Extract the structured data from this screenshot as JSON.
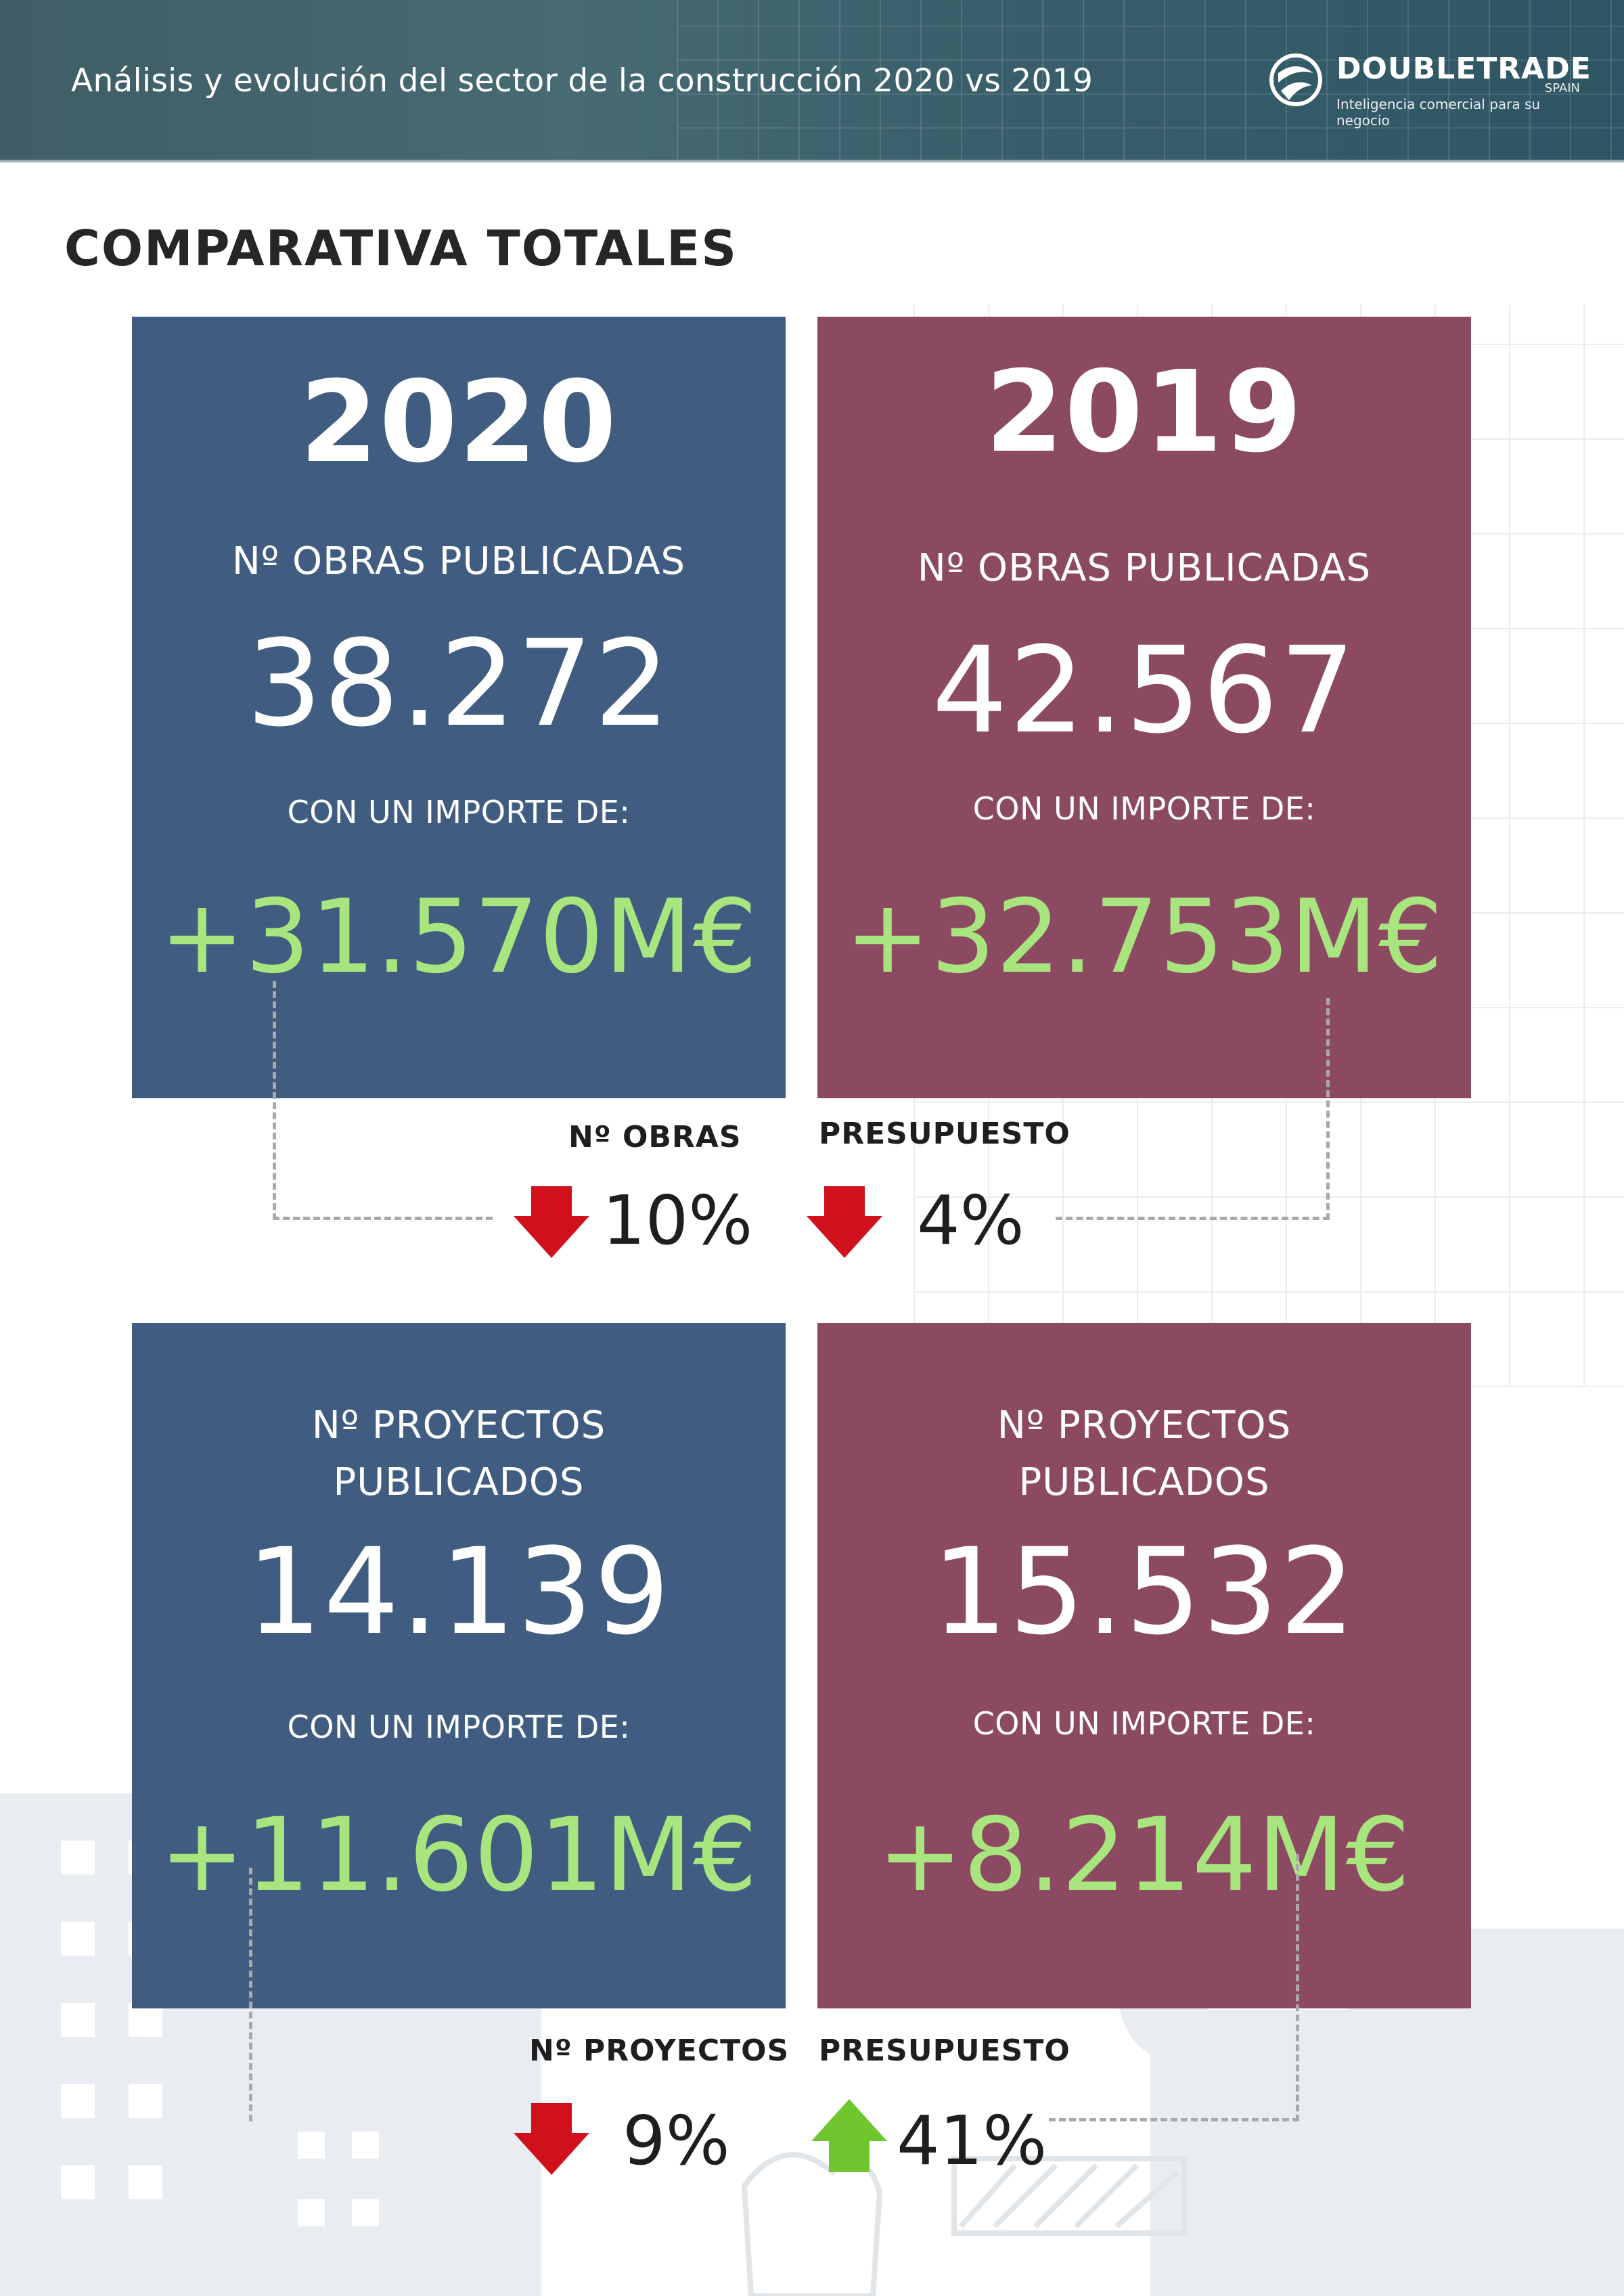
{
  "header": {
    "title": "Análisis y evolución del sector de la construcción 2020 vs 2019",
    "logo_name": "DOUBLETRADE",
    "logo_country": "SPAIN",
    "logo_tagline": "Inteligencia comercial para  su negocio"
  },
  "section_title": "COMPARATIVA TOTALES",
  "cards": {
    "obras_2020": {
      "year": "2020",
      "label": "Nº OBRAS PUBLICADAS",
      "value": "38.272",
      "sub": "CON UN IMPORTE DE:",
      "amount": "+31.570M€"
    },
    "obras_2019": {
      "year": "2019",
      "label": "Nº OBRAS PUBLICADAS",
      "value": "42.567",
      "sub": "CON UN IMPORTE DE:",
      "amount": "+32.753M€"
    },
    "proyectos_2020": {
      "label_line1": "Nº PROYECTOS",
      "label_line2": "PUBLICADOS",
      "value": "14.139",
      "sub": "CON UN IMPORTE DE:",
      "amount": "+11.601M€"
    },
    "proyectos_2019": {
      "label_line1": "Nº PROYECTOS",
      "label_line2": "PUBLICADOS",
      "value": "15.532",
      "sub": "CON UN IMPORTE DE:",
      "amount": "+8.214M€"
    }
  },
  "comparisons": {
    "obras": {
      "label": "Nº OBRAS",
      "direction": "down",
      "pct": "10%"
    },
    "obras_presupuesto": {
      "label": "PRESUPUESTO",
      "direction": "down",
      "pct": "4%"
    },
    "proyectos": {
      "label": "Nº PROYECTOS",
      "direction": "down",
      "pct": "9%"
    },
    "proyectos_presupuesto": {
      "label": "PRESUPUESTO",
      "direction": "up",
      "pct": "41%"
    }
  },
  "colors": {
    "card_2020": "#405d81",
    "card_2019": "#8c4962",
    "amount_green": "#a9e57e",
    "arrow_down": "#d0111b",
    "arrow_up": "#6fc62e"
  }
}
